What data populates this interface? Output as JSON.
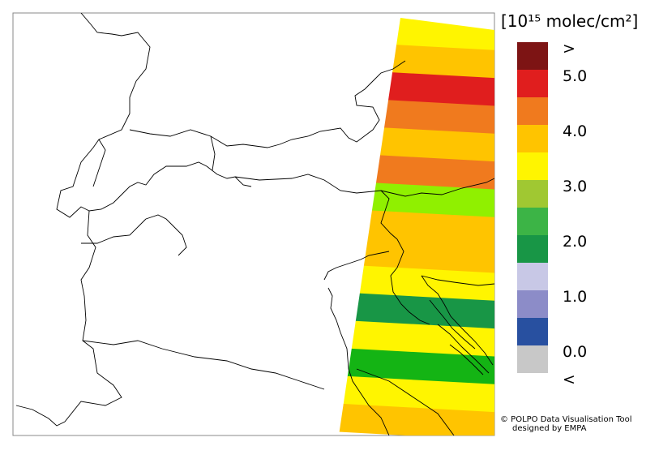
{
  "legend": {
    "unit_label": "[10¹⁵ molec/cm²]",
    "entries": [
      {
        "color": "#7d1414",
        "label": ">"
      },
      {
        "color": "#e01e1e",
        "label": "5.0"
      },
      {
        "color": "#f07a1e",
        "label": ""
      },
      {
        "color": "#ffc400",
        "label": "4.0"
      },
      {
        "color": "#fff500",
        "label": ""
      },
      {
        "color": "#a0c832",
        "label": "3.0"
      },
      {
        "color": "#3cb446",
        "label": ""
      },
      {
        "color": "#189646",
        "label": "2.0"
      },
      {
        "color": "#c8c8e6",
        "label": ""
      },
      {
        "color": "#8c8cc8",
        "label": "1.0"
      },
      {
        "color": "#2850a0",
        "label": ""
      },
      {
        "color": "#c8c8c8",
        "label": "0.0"
      }
    ],
    "below_label": "<"
  },
  "swath": {
    "stripe_colors": [
      "#fff500",
      "#ffc400",
      "#e01e1e",
      "#f07a1e",
      "#ffc400",
      "#f07a1e",
      "#90f000",
      "#ffc400",
      "#ffc400",
      "#fff500",
      "#189646",
      "#fff500",
      "#14b414",
      "#fff500",
      "#ffc400"
    ]
  },
  "credits": {
    "line1": "© POLPO Data Visualisation Tool",
    "line2": "designed by EMPA"
  }
}
